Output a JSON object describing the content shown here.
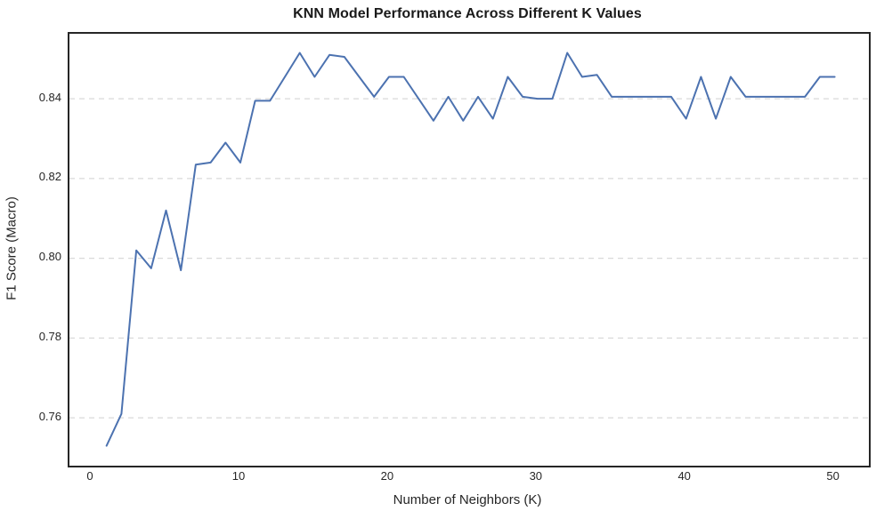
{
  "chart_data": {
    "type": "line",
    "title": "KNN Model Performance Across Different K Values",
    "xlabel": "Number of Neighbors (K)",
    "ylabel": "F1 Score (Macro)",
    "x": [
      1,
      2,
      3,
      4,
      5,
      6,
      7,
      8,
      9,
      10,
      11,
      12,
      13,
      14,
      15,
      16,
      17,
      18,
      19,
      20,
      21,
      22,
      23,
      24,
      25,
      26,
      27,
      28,
      29,
      30,
      31,
      32,
      33,
      34,
      35,
      36,
      37,
      38,
      39,
      40,
      41,
      42,
      43,
      44,
      45,
      46,
      47,
      48,
      49,
      50
    ],
    "series": [
      {
        "name": "F1 Score (Macro)",
        "values": [
          0.753,
          0.761,
          0.802,
          0.7975,
          0.812,
          0.797,
          0.8235,
          0.824,
          0.829,
          0.824,
          0.8395,
          0.8395,
          0.8455,
          0.8515,
          0.8455,
          0.851,
          0.8505,
          0.8455,
          0.8405,
          0.8455,
          0.8455,
          0.84,
          0.8345,
          0.8405,
          0.8345,
          0.8405,
          0.835,
          0.8455,
          0.8405,
          0.84,
          0.84,
          0.8515,
          0.8455,
          0.846,
          0.8405,
          0.8405,
          0.8405,
          0.8405,
          0.8405,
          0.835,
          0.8455,
          0.835,
          0.8455,
          0.8405,
          0.8405,
          0.8405,
          0.8405,
          0.8405,
          0.8455,
          0.8455
        ]
      }
    ],
    "x_ticks": [
      0,
      10,
      20,
      30,
      40,
      50
    ],
    "x_tick_labels": [
      "0",
      "10",
      "20",
      "30",
      "40",
      "50"
    ],
    "y_ticks": [
      0.76,
      0.78,
      0.8,
      0.82,
      0.84
    ],
    "y_tick_labels": [
      "0.76",
      "0.78",
      "0.80",
      "0.82",
      "0.84"
    ],
    "xlim": [
      -1.5,
      52.3
    ],
    "ylim": [
      0.748,
      0.8563
    ],
    "grid": "horizontal-dashed-only",
    "legend": "none",
    "line_color": "#4C72B0",
    "line_width": 2,
    "grid_color": "#d9d9d9",
    "spine_color": "#262626",
    "text_color": "#262626"
  }
}
